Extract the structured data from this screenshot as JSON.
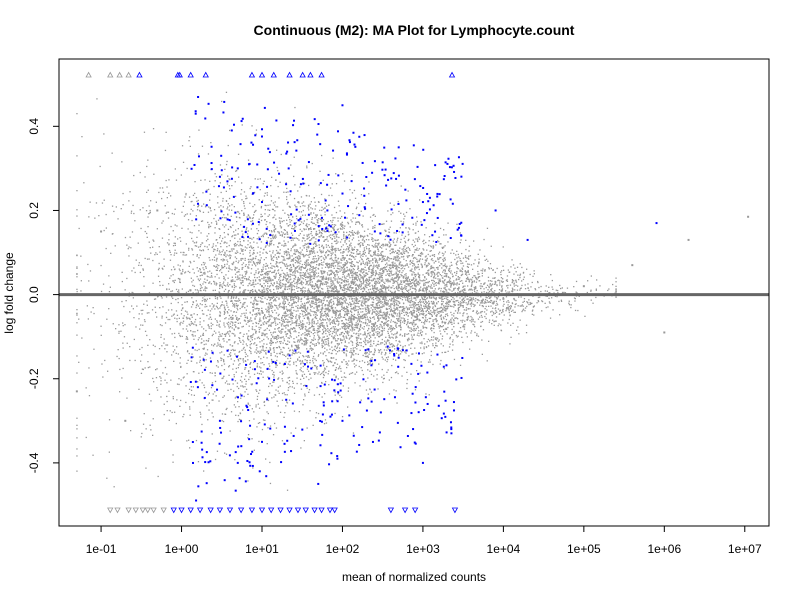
{
  "chart_data": {
    "type": "scatter",
    "title": "Continuous (M2): MA Plot for Lymphocyte.count",
    "xlabel": "mean of normalized counts",
    "ylabel": "log fold change",
    "x_scale": "log10",
    "xlim": [
      0.03,
      20000000
    ],
    "ylim": [
      -0.55,
      0.56
    ],
    "x_ticks": [
      {
        "value": 0.1,
        "label": "1e-01"
      },
      {
        "value": 1,
        "label": "1e+00"
      },
      {
        "value": 10,
        "label": "1e+01"
      },
      {
        "value": 100,
        "label": "1e+02"
      },
      {
        "value": 1000,
        "label": "1e+03"
      },
      {
        "value": 10000,
        "label": "1e+04"
      },
      {
        "value": 100000,
        "label": "1e+05"
      },
      {
        "value": 1000000,
        "label": "1e+06"
      },
      {
        "value": 10000000,
        "label": "1e+07"
      }
    ],
    "y_ticks": [
      {
        "value": -0.4,
        "label": "-0.4"
      },
      {
        "value": -0.2,
        "label": "-0.2"
      },
      {
        "value": 0.0,
        "label": "0.0"
      },
      {
        "value": 0.2,
        "label": "0.2"
      },
      {
        "value": 0.4,
        "label": "0.4"
      }
    ],
    "reference_line": {
      "y": 0.0,
      "color": "#666666"
    },
    "grid": false,
    "legend": "none",
    "series": [
      {
        "role": "not significant",
        "color": "#999999",
        "representative_points": [
          {
            "x": 0.05,
            "y": -0.23
          },
          {
            "x": 0.1,
            "y": 0.15
          },
          {
            "x": 0.2,
            "y": -0.3
          },
          {
            "x": 0.5,
            "y": 0.2
          },
          {
            "x": 1,
            "y": 0.05
          },
          {
            "x": 3,
            "y": -0.05
          },
          {
            "x": 10,
            "y": 0.02
          },
          {
            "x": 100,
            "y": -0.02
          },
          {
            "x": 1000,
            "y": 0.01
          },
          {
            "x": 10000,
            "y": -0.01
          },
          {
            "x": 100000,
            "y": 0.02
          },
          {
            "x": 400000,
            "y": 0.07
          },
          {
            "x": 1000000,
            "y": -0.09
          },
          {
            "x": 2000000,
            "y": 0.13
          },
          {
            "x": 11000000,
            "y": 0.185
          }
        ]
      },
      {
        "role": "significant",
        "color": "#0000ff",
        "representative_points": [
          {
            "x": 1.5,
            "y": 0.43
          },
          {
            "x": 3,
            "y": 0.28
          },
          {
            "x": 5,
            "y": 0.3
          },
          {
            "x": 10,
            "y": 0.22
          },
          {
            "x": 30,
            "y": 0.18
          },
          {
            "x": 100,
            "y": 0.45
          },
          {
            "x": 500,
            "y": 0.35
          },
          {
            "x": 1000,
            "y": 0.22
          },
          {
            "x": 3000,
            "y": 0.14
          },
          {
            "x": 8000,
            "y": 0.2
          },
          {
            "x": 20000,
            "y": 0.13
          },
          {
            "x": 800000,
            "y": 0.17
          },
          {
            "x": 3,
            "y": -0.3
          },
          {
            "x": 5,
            "y": -0.4
          },
          {
            "x": 10,
            "y": -0.35
          },
          {
            "x": 20,
            "y": -0.25
          },
          {
            "x": 50,
            "y": -0.45
          },
          {
            "x": 100,
            "y": -0.3
          },
          {
            "x": 300,
            "y": -0.28
          },
          {
            "x": 500,
            "y": -0.15
          },
          {
            "x": 1000,
            "y": -0.4
          }
        ]
      },
      {
        "role": "out of range (upper)",
        "marker": "triangle-up",
        "colors": [
          "#999999",
          "#0000ff"
        ],
        "x": [
          0.07,
          0.13,
          0.17,
          0.22,
          0.3,
          0.9,
          0.95,
          1.3,
          2.0,
          7.5,
          10,
          14,
          22,
          32,
          40,
          55,
          2300
        ]
      },
      {
        "role": "out of range (lower)",
        "marker": "triangle-down",
        "colors": [
          "#999999",
          "#0000ff"
        ],
        "x": [
          0.13,
          0.16,
          0.22,
          0.27,
          0.33,
          0.38,
          0.45,
          0.6,
          0.8,
          1.0,
          1.3,
          1.7,
          2.3,
          3.0,
          4.0,
          5.5,
          7.5,
          10,
          13,
          17,
          22,
          28,
          35,
          45,
          55,
          70,
          80,
          400,
          600,
          800,
          2500
        ]
      }
    ]
  }
}
